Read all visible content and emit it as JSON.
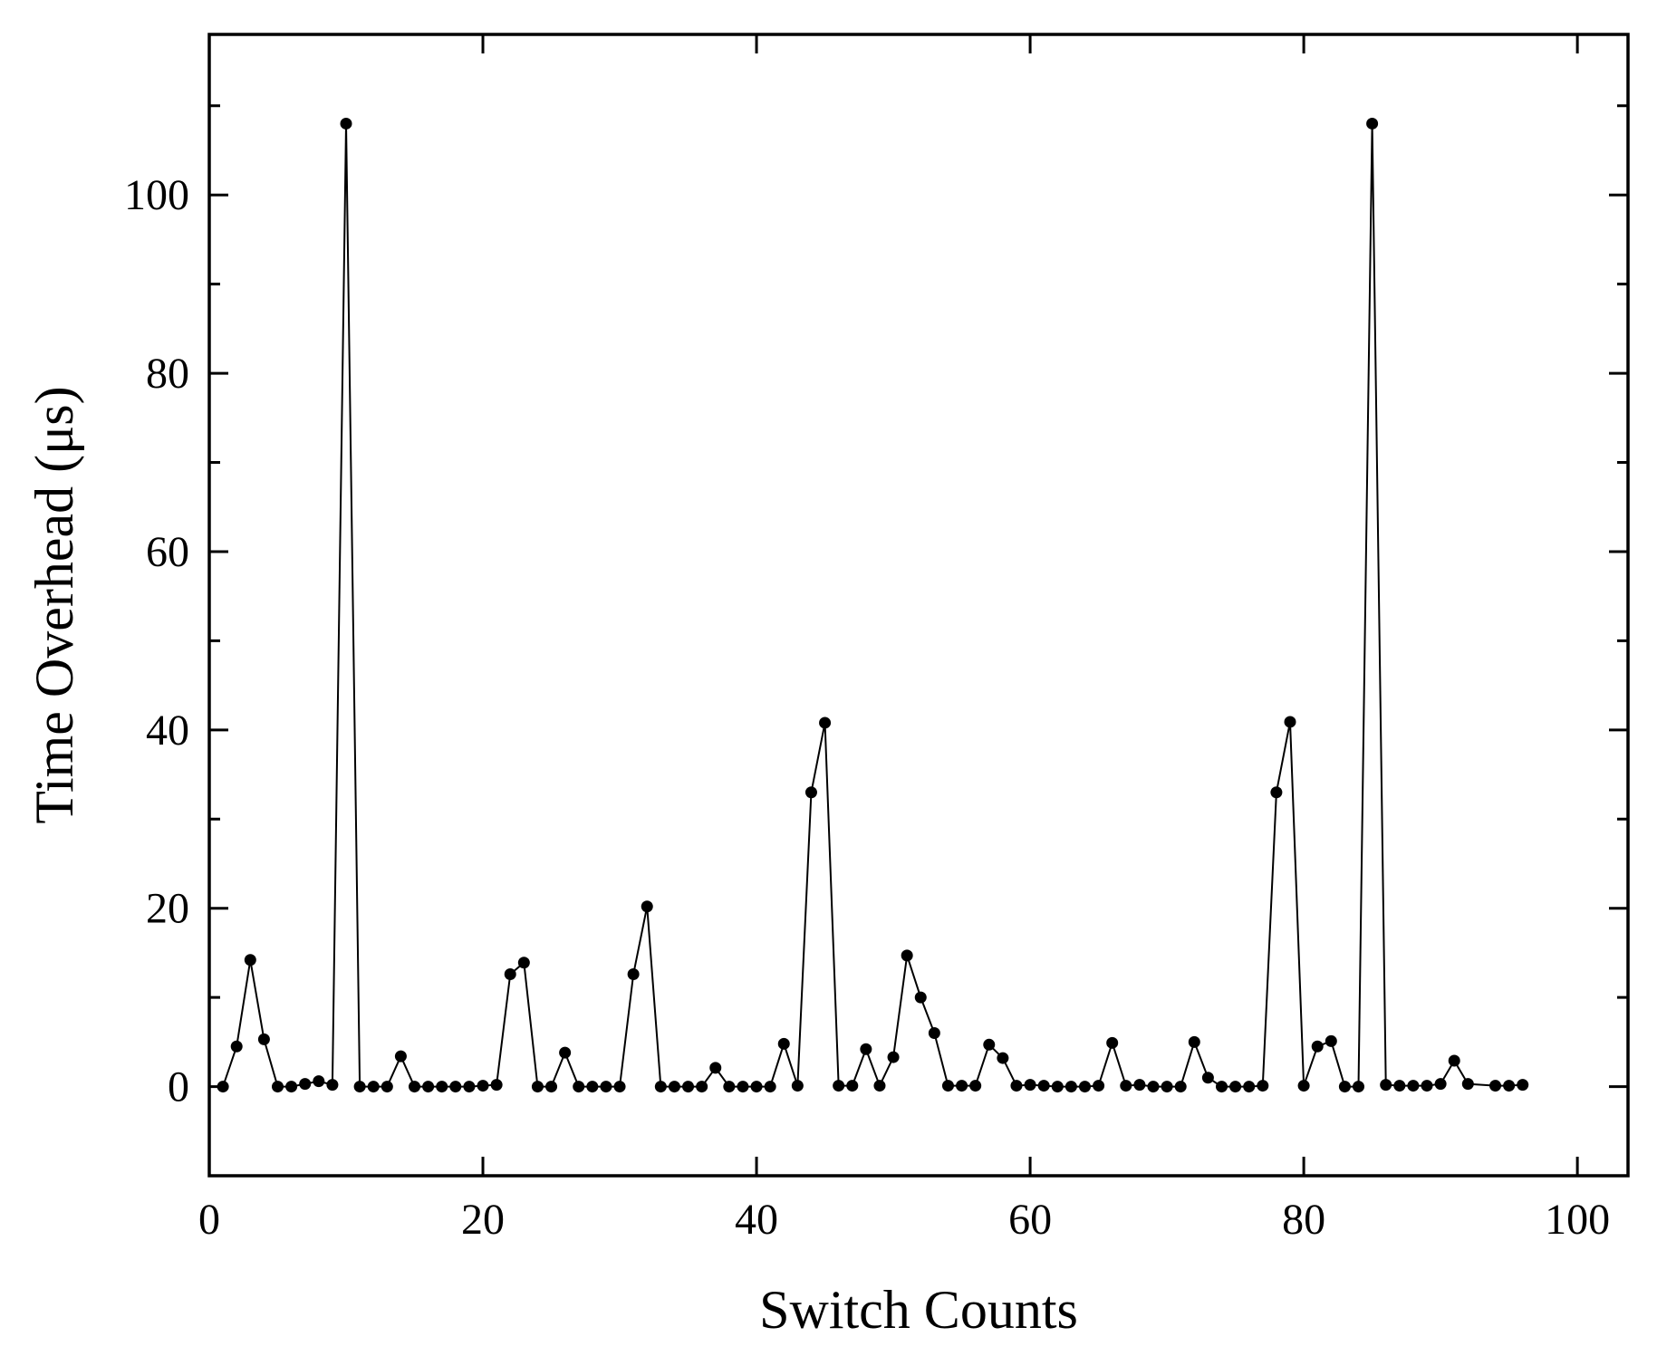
{
  "chart_data": {
    "type": "line",
    "xlabel": "Switch Counts",
    "ylabel": "Time Overhead (μs)",
    "x": [
      1,
      2,
      3,
      4,
      5,
      6,
      7,
      8,
      9,
      10,
      11,
      12,
      13,
      14,
      15,
      16,
      17,
      18,
      19,
      20,
      21,
      22,
      23,
      24,
      25,
      26,
      27,
      28,
      29,
      30,
      31,
      32,
      33,
      34,
      35,
      36,
      37,
      38,
      39,
      40,
      41,
      42,
      43,
      44,
      45,
      46,
      47,
      48,
      49,
      50,
      51,
      52,
      53,
      54,
      55,
      56,
      57,
      58,
      59,
      60,
      61,
      62,
      63,
      64,
      65,
      66,
      67,
      68,
      69,
      70,
      71,
      72,
      73,
      74,
      75,
      76,
      77,
      78,
      79,
      80,
      81,
      82,
      83,
      84,
      85,
      86,
      87,
      88,
      89,
      90,
      91,
      92,
      94,
      95,
      96
    ],
    "series": [
      {
        "color": "#000000",
        "values": [
          0,
          4.5,
          14.2,
          5.3,
          0,
          0,
          0.3,
          0.6,
          0.2,
          108,
          0,
          0,
          0,
          3.4,
          0,
          0,
          0,
          0,
          0,
          0.1,
          0.2,
          12.6,
          13.9,
          0,
          0,
          3.8,
          0,
          0,
          0,
          0,
          12.6,
          20.2,
          0,
          0,
          0,
          0,
          2.1,
          0,
          0,
          0,
          0,
          4.8,
          0.1,
          33,
          40.8,
          0.1,
          0.1,
          4.2,
          0.1,
          3.3,
          14.7,
          10,
          6,
          0.1,
          0.1,
          0.1,
          4.7,
          3.2,
          0.1,
          0.2,
          0.1,
          0,
          0,
          0,
          0.1,
          4.9,
          0.1,
          0.2,
          0,
          0,
          0,
          5,
          1,
          0,
          0,
          0,
          0.1,
          33,
          40.9,
          0.1,
          4.5,
          5.1,
          0,
          0,
          108,
          0.2,
          0.1,
          0.1,
          0.1,
          0.3,
          2.9,
          0.3,
          0.1,
          0.1,
          0.2
        ]
      }
    ],
    "xlim": [
      0,
      103.7
    ],
    "ylim": [
      -10,
      118
    ],
    "xticks": [
      0,
      20,
      40,
      60,
      80,
      100
    ],
    "yticks": [
      0,
      20,
      40,
      60,
      80,
      100
    ],
    "yminorticks": [
      -10,
      10,
      30,
      50,
      70,
      90,
      110
    ],
    "grid": false
  }
}
